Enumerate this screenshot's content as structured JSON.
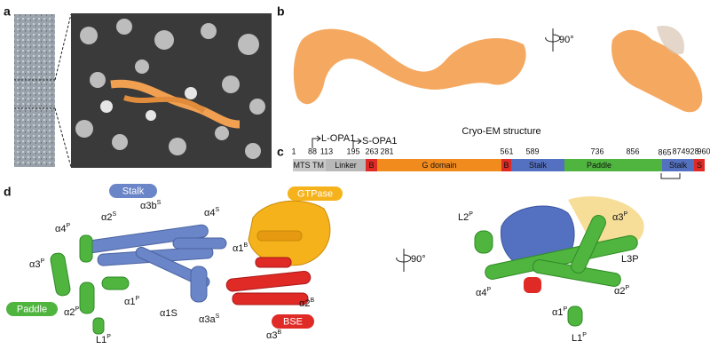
{
  "panels": [
    "a",
    "b",
    "c",
    "d"
  ],
  "panel_b": {
    "rotation": "90°"
  },
  "panel_c": {
    "title": "Cryo-EM structure",
    "isoforms": [
      "L-OPA1",
      "S-OPA1"
    ],
    "positions": [
      1,
      88,
      113,
      195,
      263,
      281,
      561,
      589,
      736,
      856,
      865,
      874,
      928,
      960
    ],
    "domains": [
      "MTS",
      "TM",
      "Linker",
      "B",
      "G domain",
      "B",
      "Stalk",
      "Paddle",
      "Stalk",
      "S"
    ]
  },
  "panel_d": {
    "pills": [
      "Stalk",
      "GTPase",
      "Paddle",
      "BSE"
    ],
    "left_labels": [
      {
        "text": "α4",
        "sup": "P"
      },
      {
        "text": "α2",
        "sup": "S"
      },
      {
        "text": "α3b",
        "sup": "S"
      },
      {
        "text": "α4",
        "sup": "S"
      },
      {
        "text": "α1",
        "sup": "B"
      },
      {
        "text": "α3",
        "sup": "P"
      },
      {
        "text": "α1",
        "sup": "P"
      },
      {
        "text": "α2",
        "sup": "P"
      },
      {
        "text": "α1S"
      },
      {
        "text": "α3a",
        "sup": "S"
      },
      {
        "text": "α2",
        "sup": "B"
      },
      {
        "text": "α3",
        "sup": "B"
      },
      {
        "text": "L1",
        "sup": "P"
      }
    ],
    "rotation": "90°",
    "right_labels": [
      {
        "text": "L2",
        "sup": "P"
      },
      {
        "text": "α3",
        "sup": "P"
      },
      {
        "text": "L3P"
      },
      {
        "text": "α4",
        "sup": "P"
      },
      {
        "text": "α2",
        "sup": "P"
      },
      {
        "text": "α1",
        "sup": "P"
      },
      {
        "text": "L1",
        "sup": "P"
      }
    ]
  }
}
